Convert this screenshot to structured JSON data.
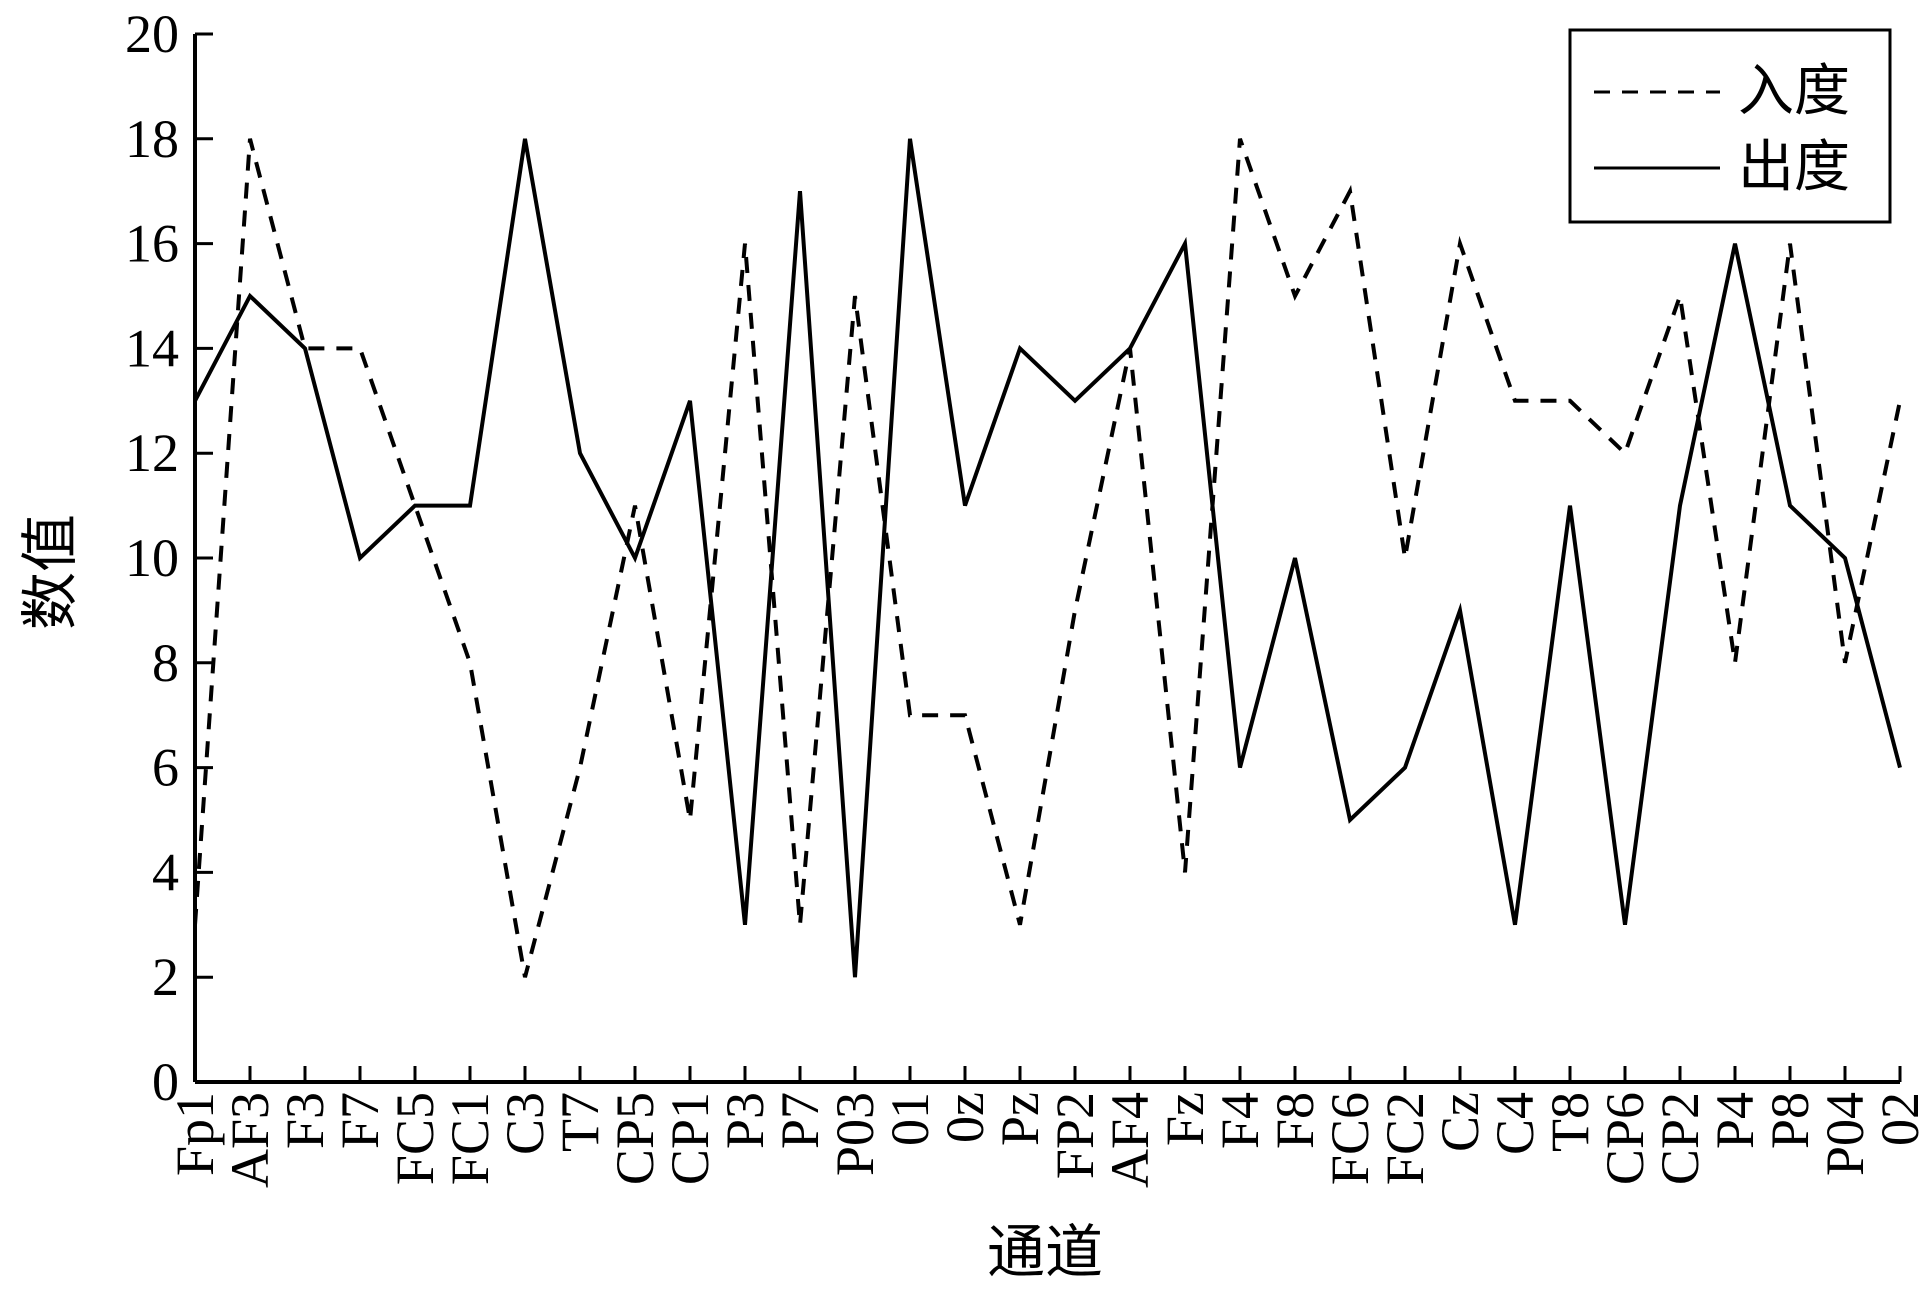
{
  "chart_data": {
    "type": "line",
    "xlabel": "通道",
    "ylabel": "数值",
    "ylim": [
      0,
      20
    ],
    "yticks": [
      0,
      2,
      4,
      6,
      8,
      10,
      12,
      14,
      16,
      18,
      20
    ],
    "categories": [
      "Fp1",
      "AF3",
      "F3",
      "F7",
      "FC5",
      "FC1",
      "C3",
      "T7",
      "CP5",
      "CP1",
      "P3",
      "P7",
      "P03",
      "01",
      "0z",
      "Pz",
      "FP2",
      "AF4",
      "Fz",
      "F4",
      "F8",
      "FC6",
      "FC2",
      "Cz",
      "C4",
      "T8",
      "CP6",
      "CP2",
      "P4",
      "P8",
      "P04",
      "02"
    ],
    "series": [
      {
        "name": "入度",
        "style": "dashed",
        "color": "#000000",
        "values": [
          3,
          18,
          14,
          14,
          11,
          8,
          2,
          6,
          11,
          5,
          16,
          3,
          15,
          7,
          7,
          3,
          9,
          14,
          4,
          18,
          15,
          17,
          10,
          16,
          13,
          13,
          12,
          15,
          8,
          16,
          8,
          13
        ]
      },
      {
        "name": "出度",
        "style": "solid",
        "color": "#000000",
        "values": [
          13,
          15,
          14,
          10,
          11,
          11,
          18,
          12,
          10,
          13,
          3,
          17,
          2,
          18,
          11,
          14,
          13,
          14,
          16,
          6,
          10,
          5,
          6,
          9,
          3,
          11,
          3,
          11,
          16,
          11,
          10,
          6
        ]
      }
    ],
    "grid": false,
    "legend_position": "top-right"
  }
}
